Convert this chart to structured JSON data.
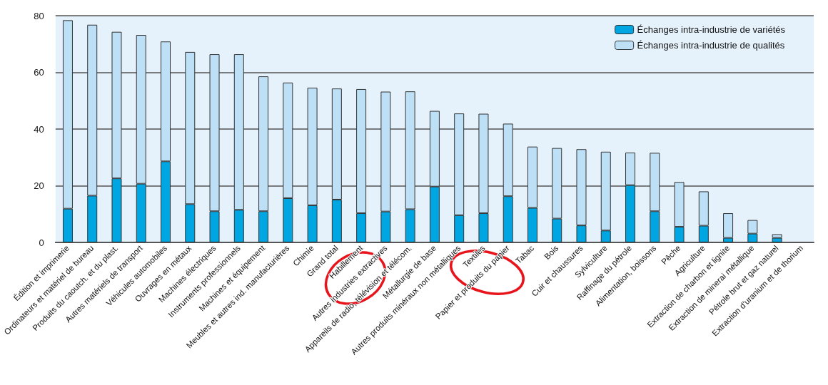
{
  "chart_data": {
    "type": "bar",
    "stacked": true,
    "categories": [
      "Édition et imprimerie",
      "Ordinateurs et matériel de bureau",
      "Produits du caoutch. et du plast.",
      "Autres matériels de transport",
      "Véhicules automobiles",
      "Ouvrages en métaux",
      "Machines électriques",
      "Instruments professionnels",
      "Machines et équipement",
      "Meubles et autres ind. manufacturières",
      "Chimie",
      "Grand total",
      "Habillement",
      "Autres industries extractives",
      "Appareils de radio, télévision et télécom.",
      "Métallurgie de base",
      "Autres produits minéraux non métalliques",
      "Textiles",
      "Papier et produits du papier",
      "Tabac",
      "Bois",
      "Cuir et chaussures",
      "Sylviculture",
      "Raffinage du pétrole",
      "Alimentation, boissons",
      "Pêche",
      "Agriculture",
      "Extraction de charbon et lignite",
      "Extraction de minerai métallique",
      "Pétrole brut et gaz naturel",
      "Extraction d'uranium et de thorium"
    ],
    "series": [
      {
        "name": "Échanges intra-industrie de variétés",
        "color": "#00a6e2",
        "values": [
          11.9,
          16.5,
          22.6,
          20.7,
          28.6,
          13.5,
          11.0,
          11.5,
          11.0,
          15.6,
          13.1,
          15.1,
          10.3,
          10.9,
          11.7,
          19.7,
          9.6,
          10.3,
          16.3,
          12.2,
          8.4,
          6.0,
          4.2,
          20.2,
          11.0,
          5.5,
          5.9,
          1.6,
          3.1,
          1.6,
          null
        ]
      },
      {
        "name": "Échanges intra-industrie de qualités",
        "color": "#bde0f6",
        "values": [
          66.5,
          60.3,
          51.7,
          52.5,
          42.3,
          53.7,
          55.4,
          54.9,
          47.6,
          40.8,
          41.5,
          39.2,
          43.8,
          42.3,
          41.6,
          26.7,
          35.9,
          35.1,
          25.6,
          21.6,
          24.9,
          26.9,
          27.8,
          11.5,
          20.6,
          15.8,
          12.1,
          8.7,
          4.8,
          1.3,
          null
        ]
      }
    ],
    "ylim": [
      0,
      80
    ],
    "yticks": [
      0,
      20,
      40,
      60,
      80
    ],
    "grid": "y",
    "legend": "top right"
  }
}
